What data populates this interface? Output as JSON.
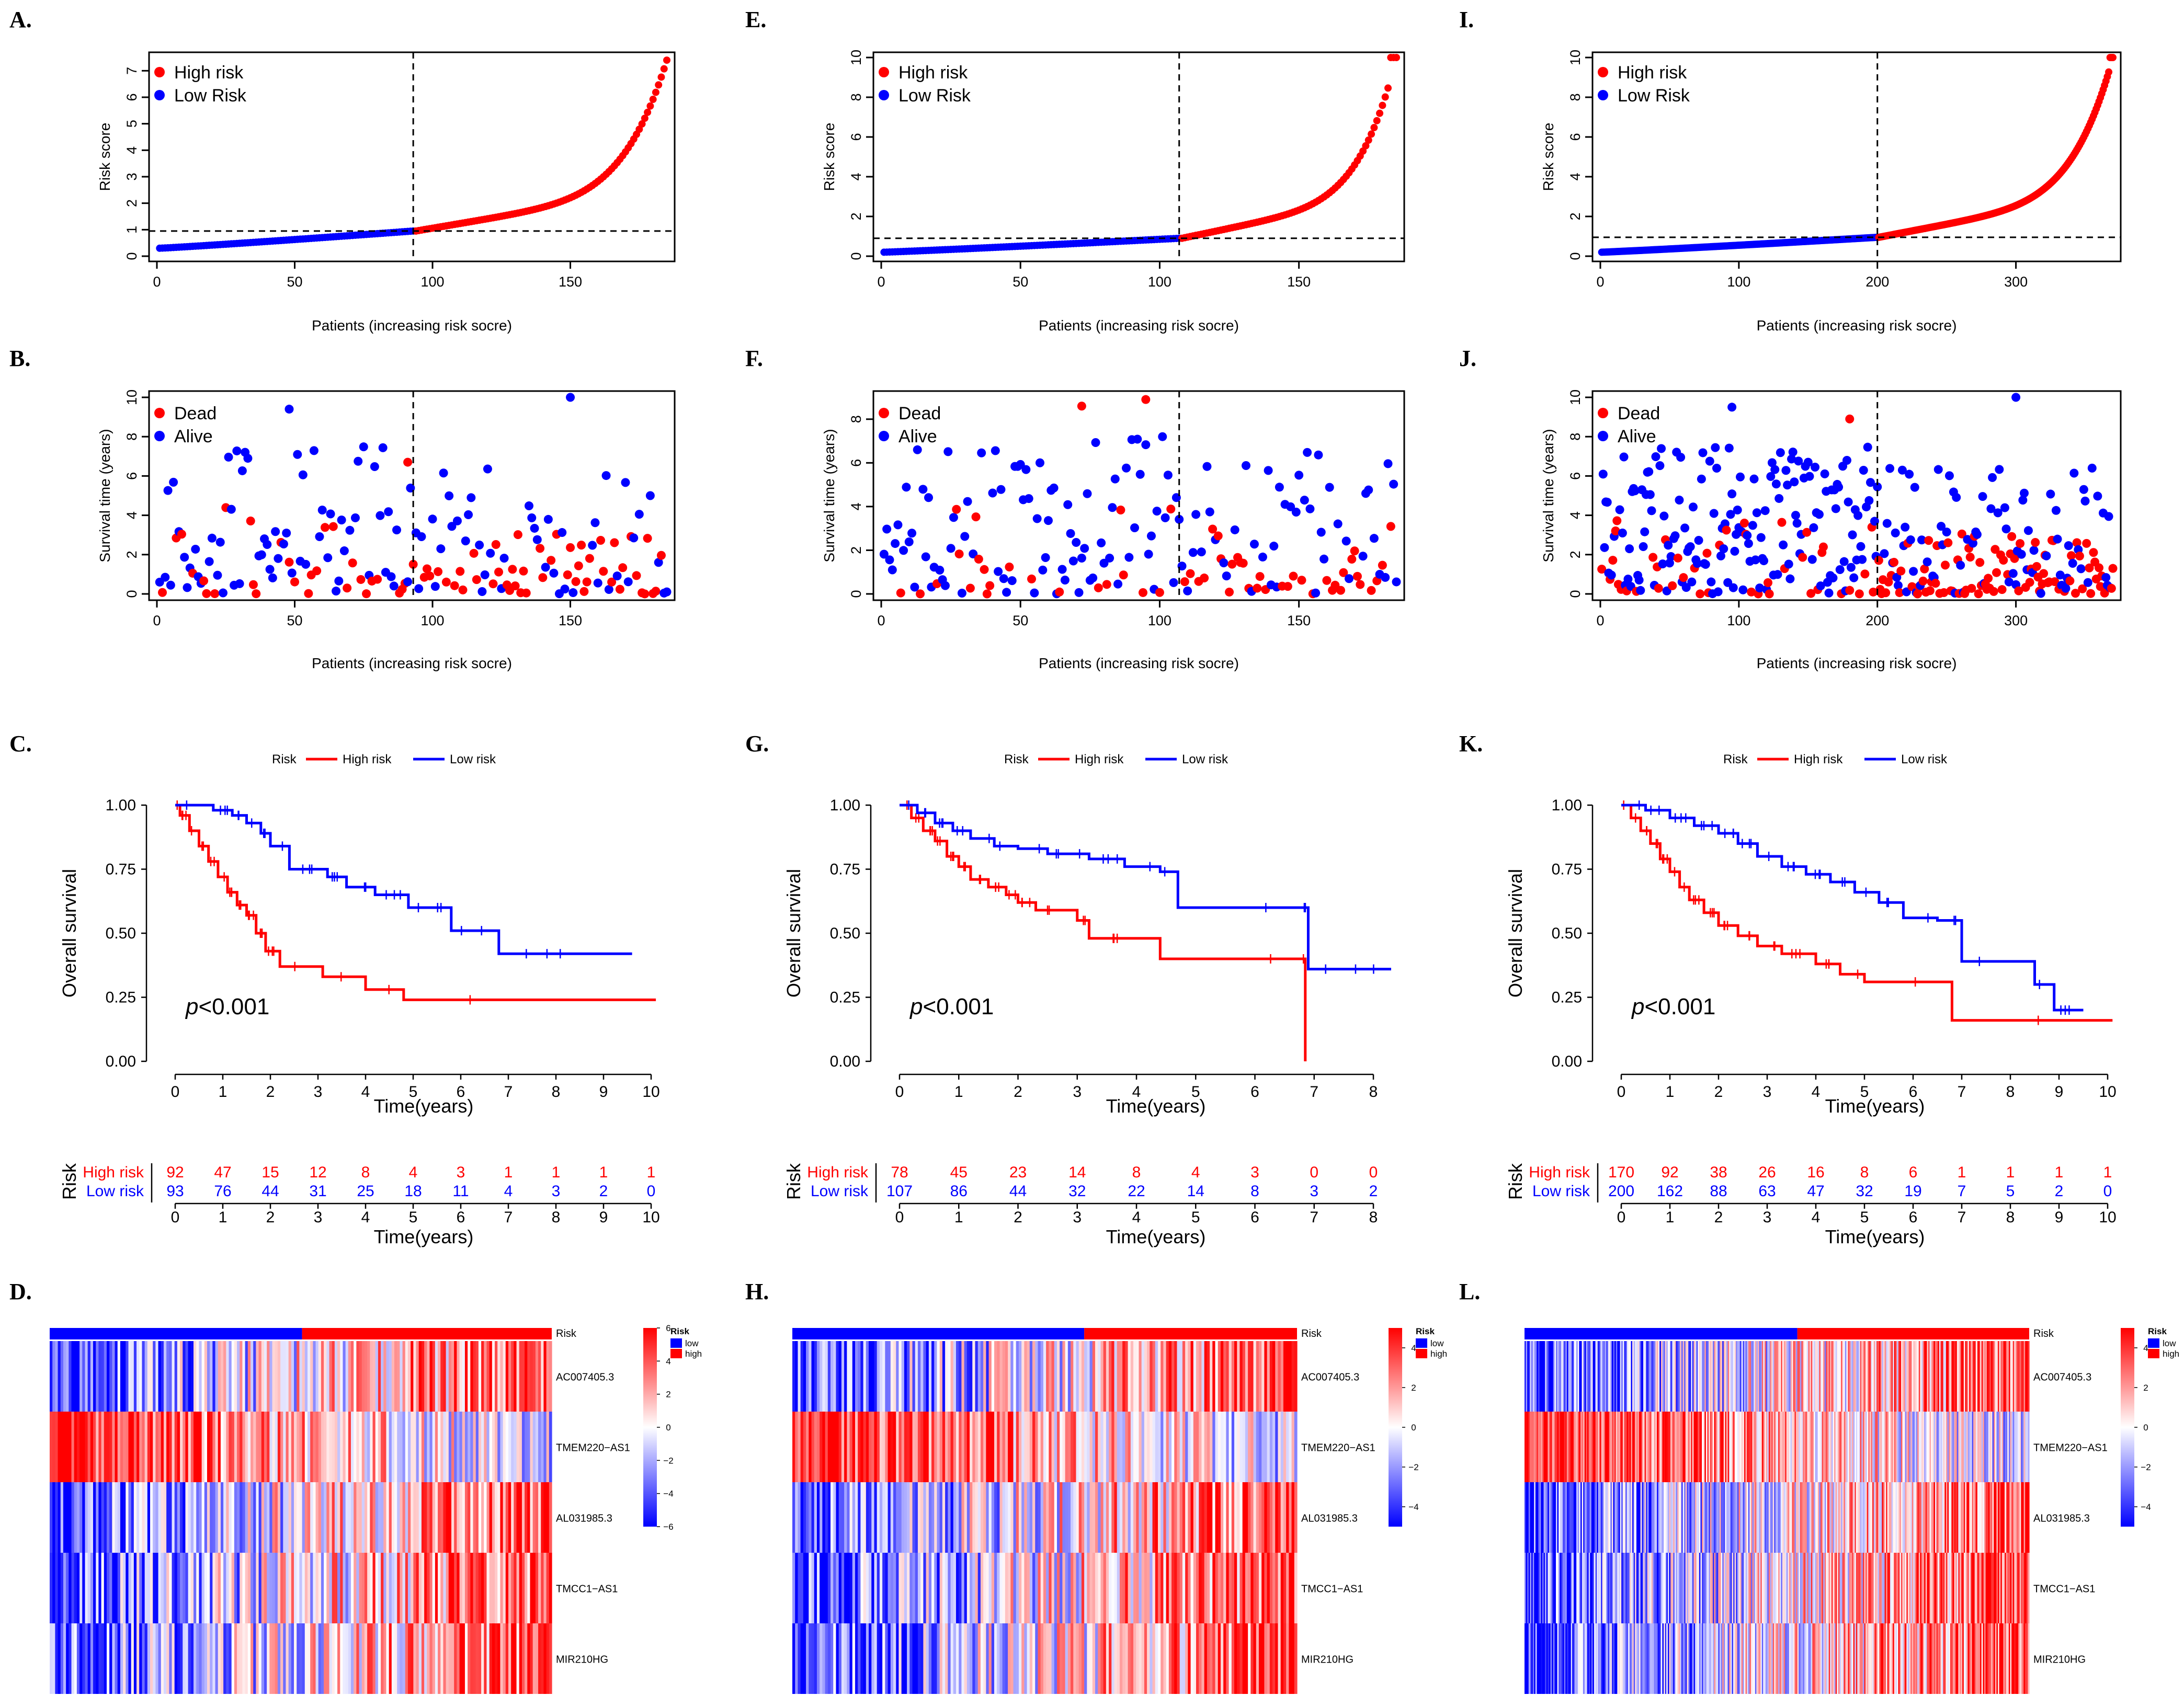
{
  "figure": {
    "panel_labels": [
      "A.",
      "B.",
      "C.",
      "D.",
      "E.",
      "F.",
      "G.",
      "H.",
      "I.",
      "J.",
      "K.",
      "L."
    ],
    "colors": {
      "high": "#ff0000",
      "low": "#0000ff",
      "white": "#ffffff"
    }
  },
  "chart_data": [
    {
      "id": "A",
      "type": "scatter",
      "subtype": "risk_score_curve",
      "xlabel": "Patients (increasing risk socre)",
      "ylabel": "Risk score",
      "xlim": [
        0,
        185
      ],
      "ylim": [
        0,
        7.5
      ],
      "xticks": [
        0,
        50,
        100,
        150
      ],
      "yticks": [
        0,
        1,
        2,
        3,
        4,
        5,
        6,
        7
      ],
      "n_low": 93,
      "n_high": 92,
      "cutoff_index": 93,
      "cutoff_value": 0.95,
      "low_range": [
        0.3,
        0.95
      ],
      "high_range": [
        0.95,
        7.4
      ],
      "legend": [
        "High risk",
        "Low Risk"
      ]
    },
    {
      "id": "B",
      "type": "scatter",
      "subtype": "survival_status",
      "xlabel": "Patients (increasing risk socre)",
      "ylabel": "Survival time (years)",
      "xlim": [
        0,
        185
      ],
      "ylim": [
        0,
        10
      ],
      "xticks": [
        0,
        50,
        100,
        150
      ],
      "yticks": [
        0,
        2,
        4,
        6,
        8,
        10
      ],
      "cutoff_index": 93,
      "legend": [
        "Dead",
        "Alive"
      ],
      "highlights": [
        {
          "x": 48,
          "y": 9.4,
          "status": "Alive"
        },
        {
          "x": 150,
          "y": 10,
          "status": "Alive"
        },
        {
          "x": 91,
          "y": 6.7,
          "status": "Dead"
        }
      ]
    },
    {
      "id": "C",
      "type": "line",
      "subtype": "kaplan_meier",
      "title_legend": {
        "label": "Risk",
        "high": "High risk",
        "low": "Low risk"
      },
      "xlabel": "Time(years)",
      "ylabel": "Overall survival",
      "xlim": [
        0,
        10
      ],
      "xticks": [
        0,
        1,
        2,
        3,
        4,
        5,
        6,
        7,
        8,
        9,
        10
      ],
      "ylim": [
        0,
        1
      ],
      "yticks": [
        "0.00",
        "0.25",
        "0.50",
        "0.75",
        "1.00"
      ],
      "p_value": "<0.001",
      "series": [
        {
          "name": "High risk",
          "x": [
            0,
            0.1,
            0.3,
            0.5,
            0.7,
            0.9,
            1.1,
            1.3,
            1.5,
            1.7,
            1.9,
            2.2,
            3.1,
            4.0,
            4.8,
            10.1
          ],
          "y": [
            1,
            0.96,
            0.9,
            0.84,
            0.78,
            0.72,
            0.66,
            0.61,
            0.57,
            0.5,
            0.43,
            0.37,
            0.33,
            0.28,
            0.24,
            0.24
          ]
        },
        {
          "name": "Low risk",
          "x": [
            0,
            0.8,
            1.2,
            1.5,
            1.8,
            2.0,
            2.4,
            3.2,
            3.6,
            4.2,
            4.9,
            5.8,
            6.8,
            9.6
          ],
          "y": [
            1,
            0.98,
            0.96,
            0.93,
            0.89,
            0.84,
            0.75,
            0.72,
            0.68,
            0.65,
            0.6,
            0.51,
            0.42,
            0.42
          ]
        }
      ],
      "risk_table": {
        "label": "Risk",
        "times": [
          0,
          1,
          2,
          3,
          4,
          5,
          6,
          7,
          8,
          9,
          10
        ],
        "high": {
          "label": "High risk",
          "values": [
            "92",
            "47",
            "15",
            "12",
            "8",
            "4",
            "3",
            "1",
            "1",
            "1",
            "1"
          ]
        },
        "low": {
          "label": "Low risk",
          "values": [
            "93",
            "76",
            "44",
            "31",
            "25",
            "18",
            "11",
            "4",
            "3",
            "2",
            "0"
          ]
        },
        "xlabel": "Time(years)"
      }
    },
    {
      "id": "D",
      "type": "heatmap",
      "rows": [
        "AC007405.3",
        "TMEM220−AS1",
        "AL031985.3",
        "TMCC1−AS1",
        "MIR210HG"
      ],
      "annotation": {
        "label": "Risk",
        "legend_title": "Risk",
        "low": "low",
        "high": "high",
        "n_low": 93,
        "n_high": 92
      },
      "colorbar": {
        "min": -6,
        "max": 6,
        "ticks": [
          "6",
          "4",
          "2",
          "0",
          "−2",
          "−4",
          "−6"
        ]
      },
      "row_trend": [
        "up",
        "down",
        "up",
        "up",
        "up"
      ],
      "n_cols": 185
    },
    {
      "id": "E",
      "type": "scatter",
      "subtype": "risk_score_curve",
      "xlabel": "Patients (increasing risk socre)",
      "ylabel": "Risk score",
      "xlim": [
        0,
        185
      ],
      "ylim": [
        0,
        10
      ],
      "xticks": [
        0,
        50,
        100,
        150
      ],
      "yticks": [
        0,
        2,
        4,
        6,
        8,
        10
      ],
      "n_low": 107,
      "n_high": 78,
      "cutoff_index": 107,
      "cutoff_value": 0.9,
      "low_range": [
        0.2,
        0.9
      ],
      "high_range": [
        0.9,
        10
      ],
      "legend": [
        "High risk",
        "Low Risk"
      ]
    },
    {
      "id": "F",
      "type": "scatter",
      "subtype": "survival_status",
      "xlabel": "Patients (increasing risk socre)",
      "ylabel": "Survival time (years)",
      "xlim": [
        0,
        185
      ],
      "ylim": [
        0,
        9
      ],
      "xticks": [
        0,
        50,
        100,
        150
      ],
      "yticks": [
        0,
        2,
        4,
        6,
        8
      ],
      "cutoff_index": 107,
      "legend": [
        "Dead",
        "Alive"
      ],
      "highlights": [
        {
          "x": 95,
          "y": 8.9,
          "status": "Dead"
        },
        {
          "x": 72,
          "y": 8.6,
          "status": "Dead"
        }
      ]
    },
    {
      "id": "G",
      "type": "line",
      "subtype": "kaplan_meier",
      "title_legend": {
        "label": "Risk",
        "high": "High risk",
        "low": "Low risk"
      },
      "xlabel": "Time(years)",
      "ylabel": "Overall survival",
      "xlim": [
        0,
        8.3
      ],
      "xticks": [
        0,
        1,
        2,
        3,
        4,
        5,
        6,
        7,
        8
      ],
      "ylim": [
        0,
        1
      ],
      "yticks": [
        "0.00",
        "0.25",
        "0.50",
        "0.75",
        "1.00"
      ],
      "p_value": "<0.001",
      "series": [
        {
          "name": "High risk",
          "x": [
            0,
            0.2,
            0.4,
            0.6,
            0.8,
            1.0,
            1.2,
            1.5,
            1.8,
            2.0,
            2.3,
            3.0,
            3.2,
            4.4,
            6.8,
            6.85
          ],
          "y": [
            1,
            0.95,
            0.9,
            0.86,
            0.8,
            0.76,
            0.71,
            0.68,
            0.65,
            0.62,
            0.59,
            0.55,
            0.48,
            0.4,
            0.4,
            0
          ]
        },
        {
          "name": "Low risk",
          "x": [
            0,
            0.3,
            0.6,
            0.9,
            1.2,
            1.6,
            2.0,
            2.5,
            3.2,
            3.8,
            4.4,
            4.7,
            6.8,
            6.9,
            8.3
          ],
          "y": [
            1,
            0.97,
            0.93,
            0.9,
            0.87,
            0.84,
            0.83,
            0.81,
            0.79,
            0.76,
            0.74,
            0.6,
            0.6,
            0.36,
            0.36
          ]
        }
      ],
      "risk_table": {
        "label": "Risk",
        "times": [
          0,
          1,
          2,
          3,
          4,
          5,
          6,
          7,
          8
        ],
        "high": {
          "label": "High risk",
          "values": [
            "78",
            "45",
            "23",
            "14",
            "8",
            "4",
            "3",
            "0",
            "0"
          ]
        },
        "low": {
          "label": "Low risk",
          "values": [
            "107",
            "86",
            "44",
            "32",
            "22",
            "14",
            "8",
            "3",
            "2"
          ]
        },
        "xlabel": "Time(years)"
      }
    },
    {
      "id": "H",
      "type": "heatmap",
      "rows": [
        "AC007405.3",
        "TMEM220−AS1",
        "AL031985.3",
        "TMCC1−AS1",
        "MIR210HG"
      ],
      "annotation": {
        "label": "Risk",
        "legend_title": "Risk",
        "low": "low",
        "high": "high",
        "n_low": 107,
        "n_high": 78
      },
      "colorbar": {
        "min": -5,
        "max": 5,
        "ticks": [
          "4",
          "2",
          "0",
          "−2",
          "−4"
        ]
      },
      "row_trend": [
        "up",
        "down",
        "up",
        "up",
        "up"
      ],
      "n_cols": 185
    },
    {
      "id": "I",
      "type": "scatter",
      "subtype": "risk_score_curve",
      "xlabel": "Patients (increasing risk socre)",
      "ylabel": "Risk score",
      "xlim": [
        0,
        370
      ],
      "ylim": [
        0,
        10
      ],
      "xticks": [
        0,
        100,
        200,
        300
      ],
      "yticks": [
        0,
        2,
        4,
        6,
        8,
        10
      ],
      "n_low": 200,
      "n_high": 170,
      "cutoff_index": 200,
      "cutoff_value": 0.95,
      "low_range": [
        0.2,
        0.95
      ],
      "high_range": [
        0.95,
        10
      ],
      "legend": [
        "High risk",
        "Low Risk"
      ]
    },
    {
      "id": "J",
      "type": "scatter",
      "subtype": "survival_status",
      "xlabel": "Patients (increasing risk socre)",
      "ylabel": "Survival time (years)",
      "xlim": [
        0,
        370
      ],
      "ylim": [
        0,
        10
      ],
      "xticks": [
        0,
        100,
        200,
        300
      ],
      "yticks": [
        0,
        2,
        4,
        6,
        8,
        10
      ],
      "cutoff_index": 200,
      "legend": [
        "Dead",
        "Alive"
      ],
      "highlights": [
        {
          "x": 300,
          "y": 10,
          "status": "Alive"
        },
        {
          "x": 95,
          "y": 9.5,
          "status": "Alive"
        },
        {
          "x": 180,
          "y": 8.9,
          "status": "Dead"
        }
      ]
    },
    {
      "id": "K",
      "type": "line",
      "subtype": "kaplan_meier",
      "title_legend": {
        "label": "Risk",
        "high": "High risk",
        "low": "Low risk"
      },
      "xlabel": "Time(years)",
      "ylabel": "Overall survival",
      "xlim": [
        0,
        10
      ],
      "xticks": [
        0,
        1,
        2,
        3,
        4,
        5,
        6,
        7,
        8,
        9,
        10
      ],
      "ylim": [
        0,
        1
      ],
      "yticks": [
        "0.00",
        "0.25",
        "0.50",
        "0.75",
        "1.00"
      ],
      "p_value": "<0.001",
      "series": [
        {
          "name": "High risk",
          "x": [
            0,
            0.2,
            0.4,
            0.6,
            0.8,
            1.0,
            1.2,
            1.4,
            1.7,
            2.0,
            2.4,
            2.8,
            3.3,
            4.0,
            4.5,
            5.0,
            6.8,
            10.1
          ],
          "y": [
            1,
            0.95,
            0.9,
            0.85,
            0.79,
            0.74,
            0.68,
            0.63,
            0.58,
            0.53,
            0.49,
            0.45,
            0.42,
            0.38,
            0.34,
            0.31,
            0.16,
            0.16
          ]
        },
        {
          "name": "Low risk",
          "x": [
            0,
            0.5,
            1.0,
            1.5,
            2.0,
            2.4,
            2.8,
            3.3,
            3.8,
            4.3,
            4.8,
            5.3,
            5.8,
            6.5,
            7.0,
            8.5,
            8.9,
            9.5
          ],
          "y": [
            1,
            0.98,
            0.95,
            0.92,
            0.89,
            0.85,
            0.8,
            0.76,
            0.73,
            0.7,
            0.66,
            0.62,
            0.56,
            0.55,
            0.39,
            0.3,
            0.2,
            0.2
          ]
        }
      ],
      "risk_table": {
        "label": "Risk",
        "times": [
          0,
          1,
          2,
          3,
          4,
          5,
          6,
          7,
          8,
          9,
          10
        ],
        "high": {
          "label": "High risk",
          "values": [
            "170",
            "92",
            "38",
            "26",
            "16",
            "8",
            "6",
            "1",
            "1",
            "1",
            "1"
          ]
        },
        "low": {
          "label": "Low risk",
          "values": [
            "200",
            "162",
            "88",
            "63",
            "47",
            "32",
            "19",
            "7",
            "5",
            "2",
            "0"
          ]
        },
        "xlabel": "Time(years)"
      }
    },
    {
      "id": "L",
      "type": "heatmap",
      "rows": [
        "AC007405.3",
        "TMEM220−AS1",
        "AL031985.3",
        "TMCC1−AS1",
        "MIR210HG"
      ],
      "annotation": {
        "label": "Risk",
        "legend_title": "Risk",
        "low": "low",
        "high": "high",
        "n_low": 200,
        "n_high": 170
      },
      "colorbar": {
        "min": -5,
        "max": 5,
        "ticks": [
          "4",
          "2",
          "0",
          "−2",
          "−4"
        ]
      },
      "row_trend": [
        "up",
        "down",
        "up",
        "up",
        "up"
      ],
      "n_cols": 370
    }
  ]
}
